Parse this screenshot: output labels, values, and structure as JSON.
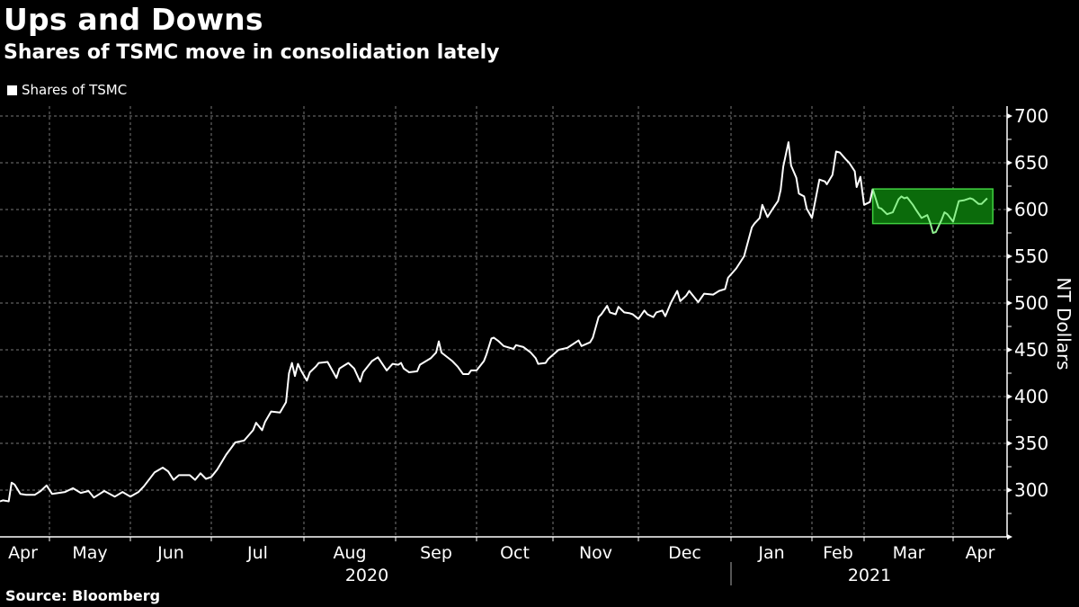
{
  "header": {
    "title": "Ups and Downs",
    "subtitle": "Shares of TSMC move in consolidation lately"
  },
  "legend": {
    "label": "Shares of TSMC"
  },
  "footer": {
    "source": "Source: Bloomberg"
  },
  "colors": {
    "background": "#000000",
    "line": "#ffffff",
    "highlight_fill": "#0b6b0b",
    "highlight_border": "#3fd03f",
    "highlight_line": "#8ff08f",
    "grid": "#777777"
  },
  "chart_data": {
    "type": "line",
    "title": "Ups and Downs",
    "subtitle": "Shares of TSMC move in consolidation lately",
    "ylabel": "NT Dollars",
    "ylim": [
      250,
      710
    ],
    "y_ticks": [
      300,
      350,
      400,
      450,
      500,
      550,
      600,
      650,
      700
    ],
    "y_axis_side": "right",
    "x_months": [
      {
        "label": "Apr",
        "start": "2020-04-14"
      },
      {
        "label": "May",
        "start": "2020-05-01"
      },
      {
        "label": "Jun",
        "start": "2020-06-01"
      },
      {
        "label": "Jul",
        "start": "2020-07-01"
      },
      {
        "label": "Aug",
        "start": "2020-08-01"
      },
      {
        "label": "Sep",
        "start": "2020-09-01"
      },
      {
        "label": "Oct",
        "start": "2020-10-01"
      },
      {
        "label": "Nov",
        "start": "2020-11-01"
      },
      {
        "label": "Dec",
        "start": "2020-12-01"
      },
      {
        "label": "Jan",
        "start": "2021-01-01"
      },
      {
        "label": "Feb",
        "start": "2021-02-01"
      },
      {
        "label": "Mar",
        "start": "2021-03-01"
      },
      {
        "label": "Apr",
        "start": "2021-04-01"
      }
    ],
    "x_years": [
      {
        "label": "2020"
      },
      {
        "label": "2021"
      }
    ],
    "grid": true,
    "legend_position": "top-left",
    "highlight": {
      "start": "2021-03-04",
      "end": "2021-04-15",
      "low": 585,
      "high": 622
    },
    "series": [
      {
        "name": "Shares of TSMC",
        "points": [
          [
            "2020-04-14",
            288
          ],
          [
            "2020-04-15",
            289
          ],
          [
            "2020-04-17",
            288
          ],
          [
            "2020-04-18",
            308
          ],
          [
            "2020-04-19",
            306
          ],
          [
            "2020-04-21",
            296
          ],
          [
            "2020-04-23",
            295
          ],
          [
            "2020-04-26",
            295
          ],
          [
            "2020-04-28",
            299
          ],
          [
            "2020-04-30",
            305
          ],
          [
            "2020-05-02",
            296
          ],
          [
            "2020-05-07",
            298
          ],
          [
            "2020-05-10",
            302
          ],
          [
            "2020-05-13",
            297
          ],
          [
            "2020-05-16",
            299
          ],
          [
            "2020-05-18",
            292
          ],
          [
            "2020-05-22",
            299
          ],
          [
            "2020-05-26",
            293
          ],
          [
            "2020-05-29",
            298
          ],
          [
            "2020-06-01",
            293
          ],
          [
            "2020-06-04",
            298
          ],
          [
            "2020-06-06",
            304
          ],
          [
            "2020-06-10",
            319
          ],
          [
            "2020-06-13",
            324
          ],
          [
            "2020-06-15",
            320
          ],
          [
            "2020-06-17",
            311
          ],
          [
            "2020-06-19",
            316
          ],
          [
            "2020-06-23",
            316
          ],
          [
            "2020-06-25",
            311
          ],
          [
            "2020-06-27",
            318
          ],
          [
            "2020-06-29",
            312
          ],
          [
            "2020-07-01",
            314
          ],
          [
            "2020-07-03",
            322
          ],
          [
            "2020-07-06",
            338
          ],
          [
            "2020-07-09",
            351
          ],
          [
            "2020-07-12",
            353
          ],
          [
            "2020-07-15",
            364
          ],
          [
            "2020-07-16",
            372
          ],
          [
            "2020-07-18",
            364
          ],
          [
            "2020-07-19",
            373
          ],
          [
            "2020-07-21",
            384
          ],
          [
            "2020-07-24",
            383
          ],
          [
            "2020-07-26",
            394
          ],
          [
            "2020-07-27",
            425
          ],
          [
            "2020-07-28",
            436
          ],
          [
            "2020-07-29",
            422
          ],
          [
            "2020-07-30",
            435
          ],
          [
            "2020-07-31",
            428
          ],
          [
            "2020-08-02",
            417
          ],
          [
            "2020-08-03",
            426
          ],
          [
            "2020-08-05",
            432
          ],
          [
            "2020-08-06",
            436
          ],
          [
            "2020-08-09",
            437
          ],
          [
            "2020-08-12",
            420
          ],
          [
            "2020-08-13",
            430
          ],
          [
            "2020-08-16",
            436
          ],
          [
            "2020-08-18",
            430
          ],
          [
            "2020-08-20",
            416
          ],
          [
            "2020-08-21",
            426
          ],
          [
            "2020-08-24",
            438
          ],
          [
            "2020-08-26",
            442
          ],
          [
            "2020-08-29",
            428
          ],
          [
            "2020-08-31",
            435
          ],
          [
            "2020-09-02",
            434
          ],
          [
            "2020-09-03",
            436
          ],
          [
            "2020-09-04",
            430
          ],
          [
            "2020-09-06",
            426
          ],
          [
            "2020-09-09",
            427
          ],
          [
            "2020-09-10",
            434
          ],
          [
            "2020-09-14",
            441
          ],
          [
            "2020-09-16",
            447
          ],
          [
            "2020-09-17",
            459
          ],
          [
            "2020-09-18",
            447
          ],
          [
            "2020-09-22",
            438
          ],
          [
            "2020-09-24",
            432
          ],
          [
            "2020-09-26",
            424
          ],
          [
            "2020-09-28",
            424
          ],
          [
            "2020-09-29",
            428
          ],
          [
            "2020-10-01",
            428
          ],
          [
            "2020-10-04",
            438
          ],
          [
            "2020-10-05",
            445
          ],
          [
            "2020-10-07",
            462
          ],
          [
            "2020-10-08",
            463
          ],
          [
            "2020-10-10",
            459
          ],
          [
            "2020-10-12",
            454
          ],
          [
            "2020-10-16",
            451
          ],
          [
            "2020-10-17",
            455
          ],
          [
            "2020-10-20",
            453
          ],
          [
            "2020-10-23",
            447
          ],
          [
            "2020-10-25",
            441
          ],
          [
            "2020-10-26",
            435
          ],
          [
            "2020-10-29",
            436
          ],
          [
            "2020-10-30",
            440
          ],
          [
            "2020-11-03",
            450
          ],
          [
            "2020-11-06",
            452
          ],
          [
            "2020-11-10",
            460
          ],
          [
            "2020-11-11",
            454
          ],
          [
            "2020-11-14",
            458
          ],
          [
            "2020-11-15",
            463
          ],
          [
            "2020-11-17",
            485
          ],
          [
            "2020-11-18",
            488
          ],
          [
            "2020-11-20",
            497
          ],
          [
            "2020-11-21",
            490
          ],
          [
            "2020-11-23",
            488
          ],
          [
            "2020-11-24",
            496
          ],
          [
            "2020-11-26",
            490
          ],
          [
            "2020-11-28",
            489
          ],
          [
            "2020-11-29",
            488
          ],
          [
            "2020-12-01",
            483
          ],
          [
            "2020-12-03",
            492
          ],
          [
            "2020-12-04",
            488
          ],
          [
            "2020-12-06",
            485
          ],
          [
            "2020-12-07",
            490
          ],
          [
            "2020-12-09",
            492
          ],
          [
            "2020-12-10",
            486
          ],
          [
            "2020-12-12",
            501
          ],
          [
            "2020-12-14",
            513
          ],
          [
            "2020-12-15",
            502
          ],
          [
            "2020-12-17",
            508
          ],
          [
            "2020-12-18",
            513
          ],
          [
            "2020-12-19",
            509
          ],
          [
            "2020-12-21",
            501
          ],
          [
            "2020-12-23",
            510
          ],
          [
            "2020-12-26",
            509
          ],
          [
            "2020-12-28",
            513
          ],
          [
            "2020-12-30",
            515
          ],
          [
            "2020-12-31",
            527
          ],
          [
            "2021-01-03",
            537
          ],
          [
            "2021-01-06",
            550
          ],
          [
            "2021-01-09",
            581
          ],
          [
            "2021-01-10",
            585
          ],
          [
            "2021-01-12",
            591
          ],
          [
            "2021-01-13",
            605
          ],
          [
            "2021-01-15",
            592
          ],
          [
            "2021-01-17",
            601
          ],
          [
            "2021-01-19",
            609
          ],
          [
            "2021-01-20",
            621
          ],
          [
            "2021-01-21",
            646
          ],
          [
            "2021-01-23",
            672
          ],
          [
            "2021-01-24",
            647
          ],
          [
            "2021-01-26",
            634
          ],
          [
            "2021-01-27",
            617
          ],
          [
            "2021-01-29",
            614
          ],
          [
            "2021-01-30",
            601
          ],
          [
            "2021-02-01",
            591
          ],
          [
            "2021-02-05",
            632
          ],
          [
            "2021-02-08",
            630
          ],
          [
            "2021-02-09",
            627
          ],
          [
            "2021-02-12",
            637
          ],
          [
            "2021-02-14",
            662
          ],
          [
            "2021-02-16",
            661
          ],
          [
            "2021-02-19",
            654
          ],
          [
            "2021-02-21",
            650
          ],
          [
            "2021-02-24",
            641
          ],
          [
            "2021-02-25",
            624
          ],
          [
            "2021-02-27",
            635
          ],
          [
            "2021-03-01",
            605
          ],
          [
            "2021-03-03",
            608
          ],
          [
            "2021-03-04",
            622
          ],
          [
            "2021-03-06",
            602
          ],
          [
            "2021-03-07",
            601
          ],
          [
            "2021-03-09",
            595
          ],
          [
            "2021-03-11",
            597
          ],
          [
            "2021-03-13",
            611
          ],
          [
            "2021-03-14",
            614
          ],
          [
            "2021-03-15",
            612
          ],
          [
            "2021-03-16",
            613
          ],
          [
            "2021-03-18",
            605
          ],
          [
            "2021-03-19",
            600
          ],
          [
            "2021-03-21",
            591
          ],
          [
            "2021-03-23",
            594
          ],
          [
            "2021-03-24",
            586
          ],
          [
            "2021-03-25",
            575
          ],
          [
            "2021-03-26",
            576
          ],
          [
            "2021-03-28",
            589
          ],
          [
            "2021-03-29",
            597
          ],
          [
            "2021-03-30",
            595
          ],
          [
            "2021-04-01",
            587
          ],
          [
            "2021-04-03",
            609
          ],
          [
            "2021-04-05",
            610
          ],
          [
            "2021-04-07",
            612
          ],
          [
            "2021-04-08",
            611
          ],
          [
            "2021-04-10",
            606
          ],
          [
            "2021-04-11",
            606
          ],
          [
            "2021-04-13",
            612
          ]
        ]
      }
    ]
  }
}
